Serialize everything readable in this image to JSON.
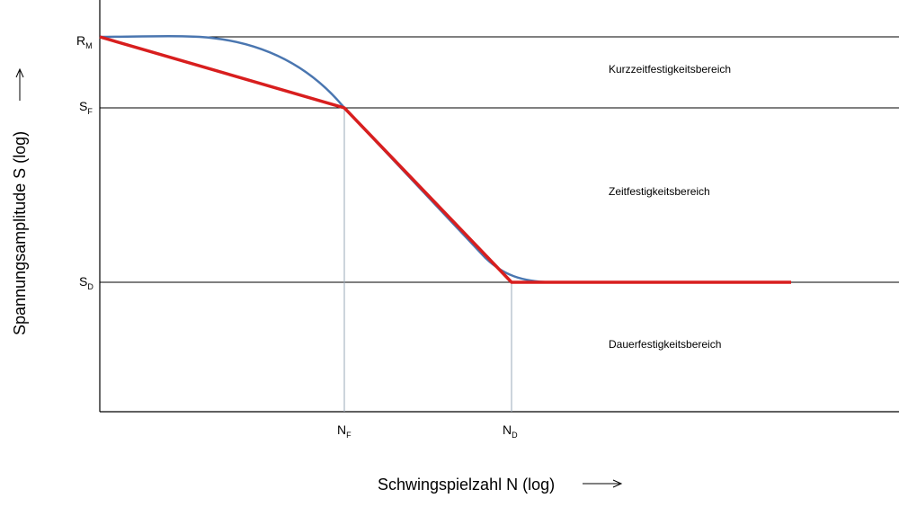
{
  "axes": {
    "y_label": "Spannungsamplitude S (log)",
    "x_label": "Schwingspielzahl N (log)"
  },
  "y_levels": [
    {
      "main": "R",
      "sub": "M"
    },
    {
      "main": "S",
      "sub": "F"
    },
    {
      "main": "S",
      "sub": "D"
    }
  ],
  "x_levels": [
    {
      "main": "N",
      "sub": "F"
    },
    {
      "main": "N",
      "sub": "D"
    }
  ],
  "regions": [
    "Kurzzeitfestigkeitsbereich",
    "Zeitfestigkeitsbereich",
    "Dauerfestigkeitsbereich"
  ]
}
